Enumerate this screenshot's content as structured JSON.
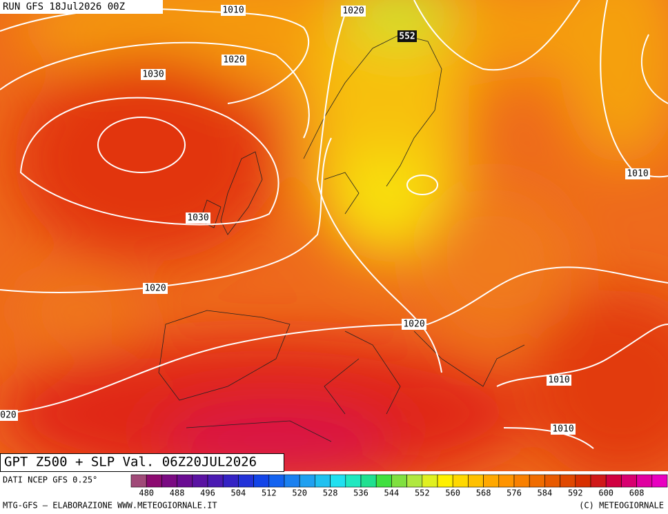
{
  "header": {
    "run": "RUN GFS 18Jul2026 00Z"
  },
  "map": {
    "isobar_labels": [
      "1010",
      "1020",
      "1020",
      "1030",
      "1010",
      "1030",
      "1020",
      "1020",
      "1010",
      "020",
      "1010"
    ],
    "height_label": "552",
    "title": "GPT Z500 + SLP Val. 06Z20JUL2026"
  },
  "legend": {
    "source": "DATI NCEP GFS 0.25°",
    "labels": [
      480,
      488,
      496,
      504,
      512,
      520,
      528,
      536,
      544,
      552,
      560,
      568,
      576,
      584,
      592,
      600,
      608
    ],
    "colors": [
      "#a04a78",
      "#8c0a70",
      "#7a0a82",
      "#6a0c92",
      "#5a12a2",
      "#4a1ab2",
      "#3422c4",
      "#2232d8",
      "#1244e8",
      "#1262f0",
      "#1a80f0",
      "#20a0f0",
      "#20c0f0",
      "#20e0f0",
      "#20e8c0",
      "#20e090",
      "#40e040",
      "#80e040",
      "#b0e840",
      "#e0f020",
      "#fff000",
      "#ffd800",
      "#ffc000",
      "#ffa800",
      "#ff9400",
      "#f88000",
      "#f06c00",
      "#e85a00",
      "#e04800",
      "#d83000",
      "#d01818",
      "#d00040",
      "#d80070",
      "#e000a0",
      "#e800c0"
    ]
  },
  "footer": {
    "left": "MTG-GFS — ELABORAZIONE WWW.METEOGIORNALE.IT",
    "right": "(C) METEOGIORNALE"
  }
}
